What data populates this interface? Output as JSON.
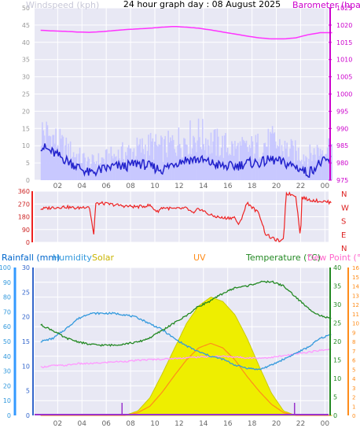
{
  "title": "24 hour graph day : 08 August 2025",
  "colors": {
    "plot_bg": "#e8e8f4",
    "grid": "#ffffff",
    "barometer": "#ff33ff",
    "wind_gust": "#c8c8ff",
    "wind_avg": "#2222cc",
    "direction": "#ee2222",
    "rain": "#3399ff",
    "humidity": "#3399dd",
    "solar": "#eeee00",
    "uv": "#ff8c1a",
    "temperature": "#228822",
    "dewpoint": "#ff99ff",
    "axis_text": "#666666"
  },
  "top_chart": {
    "left_label": "Windspeed (kph)",
    "right_label": "Barometer (hpa)",
    "left_ticks": [
      "0",
      "5",
      "10",
      "15",
      "20",
      "25",
      "30",
      "35",
      "40",
      "45",
      "50"
    ],
    "right_ticks": [
      "975",
      "980",
      "985",
      "990",
      "995",
      "1000",
      "1005",
      "1010",
      "1015",
      "1020",
      "1025"
    ],
    "ylim_left": [
      0,
      50
    ],
    "ylim_right": [
      975,
      1025
    ]
  },
  "direction_chart": {
    "left_ticks": [
      "0",
      "90",
      "180",
      "270",
      "360"
    ],
    "right_labels": [
      "N",
      "W",
      "S",
      "E",
      "N"
    ],
    "ylim": [
      0,
      360
    ]
  },
  "bottom_chart": {
    "legend": {
      "rain": "Rainfall (mm)",
      "humidity": "Humidity",
      "solar": "Solar",
      "uv": "UV",
      "temperature": "Temperature (°C)",
      "dewpoint": "Dew Point (°C)"
    },
    "humidity_ticks": [
      "0",
      "10",
      "20",
      "30",
      "40",
      "50",
      "60",
      "70",
      "80",
      "90",
      "100"
    ],
    "rain_ticks": [
      "0",
      "5",
      "10",
      "15",
      "20",
      "25",
      "30"
    ],
    "temp_ticks": [
      "0",
      "5",
      "10",
      "15",
      "20",
      "25",
      "30",
      "35",
      "40"
    ],
    "uv_ticks": [
      "0",
      "1",
      "2",
      "3",
      "4",
      "5",
      "6",
      "7",
      "8",
      "9",
      "10",
      "11",
      "12",
      "13",
      "14",
      "15",
      "16"
    ]
  },
  "x_ticks": [
    "02",
    "04",
    "06",
    "08",
    "10",
    "12",
    "14",
    "16",
    "18",
    "20",
    "22",
    "00"
  ],
  "chart_data": [
    {
      "type": "line",
      "title": "24 hour graph day : 08 August 2025",
      "x": [
        0,
        1,
        2,
        3,
        4,
        5,
        6,
        7,
        8,
        9,
        10,
        11,
        12,
        13,
        14,
        15,
        16,
        17,
        18,
        19,
        20,
        21,
        22,
        23,
        24
      ],
      "series": [
        {
          "name": "Barometer (hpa)",
          "axis": "right",
          "values": [
            1018.5,
            1018.3,
            1018.2,
            1018.0,
            1017.9,
            1018.1,
            1018.4,
            1018.7,
            1018.9,
            1019.1,
            1019.4,
            1019.6,
            1019.4,
            1019.1,
            1018.6,
            1018.0,
            1017.4,
            1016.8,
            1016.3,
            1016.0,
            1016.0,
            1016.3,
            1017.2,
            1017.8,
            1017.8
          ]
        },
        {
          "name": "Windspeed gust",
          "axis": "left",
          "values": [
            14,
            12,
            9,
            7,
            5,
            6,
            7,
            8,
            9,
            10,
            9,
            11,
            12,
            13,
            11,
            10,
            9,
            9,
            10,
            11,
            9,
            8,
            7,
            9,
            10
          ]
        },
        {
          "name": "Windspeed average",
          "axis": "left",
          "values": [
            10,
            8,
            6,
            4,
            2,
            3,
            4,
            4,
            5,
            4,
            3,
            5,
            6,
            6,
            5,
            4,
            4,
            5,
            5,
            6,
            5,
            4,
            2,
            5,
            6
          ]
        }
      ],
      "ylim_left": [
        0,
        50
      ],
      "ylim_right": [
        975,
        1025
      ],
      "ylabel": "Windspeed (kph)",
      "y2label": "Barometer (hpa)"
    },
    {
      "type": "line",
      "x": [
        0,
        1,
        2,
        3,
        4,
        4.4,
        4.5,
        5,
        6,
        7,
        8,
        9,
        9.6,
        10,
        11,
        12,
        12.6,
        13,
        14,
        15,
        16,
        16.3,
        17,
        18,
        18.5,
        19,
        19.8,
        20,
        20.2,
        21,
        21.4,
        21.5,
        22,
        23,
        24
      ],
      "series": [
        {
          "name": "Wind direction",
          "values": [
            235,
            245,
            250,
            240,
            255,
            40,
            270,
            275,
            265,
            255,
            250,
            260,
            215,
            245,
            235,
            240,
            200,
            240,
            190,
            170,
            175,
            115,
            280,
            200,
            60,
            30,
            5,
            20,
            345,
            330,
            30,
            320,
            300,
            290,
            280
          ]
        }
      ],
      "ylim": [
        0,
        360
      ]
    },
    {
      "type": "line",
      "x": [
        0,
        1,
        2,
        3,
        4,
        5,
        6,
        7,
        8,
        9,
        10,
        11,
        12,
        13,
        14,
        15,
        16,
        17,
        18,
        19,
        20,
        21,
        22,
        23,
        24
      ],
      "series": [
        {
          "name": "Humidity",
          "axis": "humidity",
          "values": [
            50,
            52,
            58,
            65,
            69,
            69,
            69,
            68,
            66,
            62,
            58,
            52,
            47,
            43,
            40,
            38,
            34,
            32,
            31,
            34,
            38,
            42,
            46,
            52,
            55
          ]
        },
        {
          "name": "Dew Point (°C)",
          "axis": "temp",
          "values": [
            13,
            13.5,
            13.5,
            14,
            14,
            14.2,
            14.5,
            14.6,
            14.9,
            15.1,
            15.2,
            15.4,
            15.6,
            15.8,
            15.9,
            16.0,
            15.8,
            15.6,
            15.5,
            15.7,
            16.1,
            16.6,
            17.1,
            17.6,
            18.0
          ]
        },
        {
          "name": "Temperature (°C)",
          "axis": "temp",
          "values": [
            24.5,
            23,
            21,
            20,
            19.2,
            19,
            19,
            19.4,
            19.8,
            21,
            23,
            25,
            27,
            29.5,
            31,
            33,
            34.5,
            35,
            36,
            36.2,
            35,
            32,
            29,
            27,
            26
          ]
        },
        {
          "name": "Solar",
          "axis": "solar",
          "values": [
            0,
            0,
            0,
            0,
            0,
            0,
            0,
            2,
            30,
            120,
            280,
            450,
            620,
            740,
            800,
            770,
            680,
            520,
            330,
            150,
            30,
            0,
            0,
            0,
            0
          ]
        },
        {
          "name": "UV",
          "axis": "uv",
          "values": [
            0,
            0,
            0,
            0,
            0,
            0,
            0,
            0,
            0.3,
            1,
            2.5,
            4.3,
            6,
            7.3,
            7.8,
            7.3,
            6,
            4.2,
            2.6,
            1.2,
            0.3,
            0,
            0,
            0,
            0
          ]
        },
        {
          "name": "Rainfall (mm)",
          "axis": "rain",
          "values": [
            0,
            0,
            0,
            0,
            0,
            0,
            0,
            0,
            0,
            0,
            0,
            0,
            0,
            0,
            0,
            0,
            0,
            0,
            0,
            0,
            0,
            0,
            0,
            0,
            0
          ]
        }
      ],
      "ylim_humidity": [
        0,
        100
      ],
      "ylim_rain": [
        0,
        30
      ],
      "ylim_temp": [
        0,
        40
      ],
      "ylim_uv": [
        0,
        16
      ]
    }
  ]
}
